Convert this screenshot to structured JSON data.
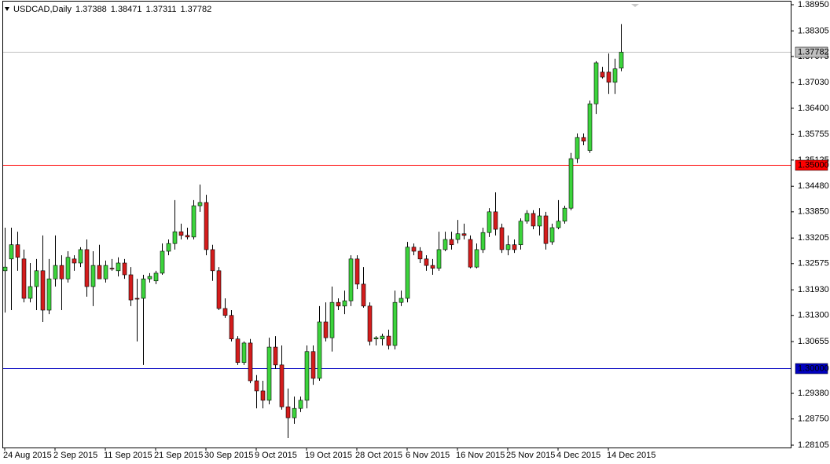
{
  "chart_data": {
    "type": "candlestick",
    "symbol": "USDCAD,Daily",
    "header_values": [
      1.37388,
      1.38471,
      1.37311,
      1.37782
    ],
    "categories": [
      "24 Aug 2015",
      null,
      null,
      null,
      null,
      null,
      null,
      null,
      "2 Sep 2015",
      null,
      null,
      null,
      null,
      null,
      null,
      null,
      "11 Sep 2015",
      null,
      null,
      null,
      null,
      null,
      null,
      null,
      "21 Sep 2015",
      null,
      null,
      null,
      null,
      null,
      null,
      null,
      "30 Sep 2015",
      null,
      null,
      null,
      null,
      null,
      null,
      null,
      "9 Oct 2015",
      null,
      null,
      null,
      null,
      null,
      null,
      null,
      "19 Oct 2015",
      null,
      null,
      null,
      null,
      null,
      null,
      null,
      "28 Oct 2015",
      null,
      null,
      null,
      null,
      null,
      null,
      null,
      "6 Nov 2015",
      null,
      null,
      null,
      null,
      null,
      null,
      null,
      "16 Nov 2015",
      null,
      null,
      null,
      null,
      null,
      null,
      null,
      "25 Nov 2015",
      null,
      null,
      null,
      null,
      null,
      null,
      null,
      "4 Dec 2015",
      null,
      null,
      null,
      null,
      null,
      null,
      null,
      "14 Dec 2015",
      null,
      null
    ],
    "open": [
      1.324,
      1.3269,
      1.3304,
      1.3269,
      1.3172,
      1.3201,
      1.324,
      1.3143,
      1.322,
      1.3253,
      1.322,
      1.3269,
      1.3259,
      1.3292,
      1.3201,
      1.3253,
      1.322,
      1.3246,
      1.324,
      1.3259,
      1.323,
      1.3172,
      1.3172,
      1.322,
      1.3215,
      1.3234,
      1.3288,
      1.3307,
      1.3336,
      1.3327,
      1.3323,
      1.34,
      1.3408,
      1.3292,
      1.324,
      1.3147,
      1.313,
      1.3072,
      1.3014,
      1.3062,
      1.2969,
      1.2944,
      1.2921,
      1.3052,
      1.3008,
      1.2905,
      1.2878,
      1.2901,
      1.2921,
      1.3041,
      1.2975,
      1.3114,
      1.3075,
      1.3162,
      1.3153,
      1.3166,
      1.3269,
      1.3207,
      1.3153,
      1.3072,
      1.3072,
      1.3079,
      1.3056,
      1.3162,
      1.3172,
      1.3298,
      1.3288,
      1.3269,
      1.3253,
      1.3246,
      1.3292,
      1.3317,
      1.3317,
      1.3331,
      1.3317,
      1.3249,
      1.3292,
      1.3334,
      1.3385,
      1.3346,
      1.3292,
      1.3304,
      1.3304,
      1.3362,
      1.3381,
      1.335,
      1.3375,
      1.3311,
      1.3346,
      1.3362,
      1.3394,
      1.3516,
      1.3568,
      1.3536,
      1.3651,
      1.3729,
      1.3729,
      1.3704,
      1.37388
    ],
    "high": [
      1.3346,
      1.3346,
      1.3336,
      1.3292,
      1.3259,
      1.3269,
      1.3327,
      1.3269,
      1.3327,
      1.3278,
      1.3288,
      1.3278,
      1.3298,
      1.3317,
      1.3288,
      1.3304,
      1.3265,
      1.3269,
      1.3273,
      1.3269,
      1.3249,
      1.322,
      1.323,
      1.3234,
      1.324,
      1.3307,
      1.3317,
      1.3414,
      1.3356,
      1.3346,
      1.3414,
      1.3452,
      1.3427,
      1.3304,
      1.3249,
      1.3172,
      1.3143,
      1.3079,
      1.3066,
      1.3072,
      1.2983,
      1.2969,
      1.3075,
      1.3079,
      1.3056,
      1.295,
      1.293,
      1.293,
      1.3056,
      1.3056,
      1.3153,
      1.3162,
      1.3201,
      1.3172,
      1.3191,
      1.3278,
      1.3278,
      1.3249,
      1.3162,
      1.3079,
      1.3085,
      1.3095,
      1.3191,
      1.3191,
      1.3311,
      1.3307,
      1.3298,
      1.3278,
      1.3269,
      1.3336,
      1.3336,
      1.3336,
      1.3365,
      1.3356,
      1.3327,
      1.3307,
      1.3346,
      1.3394,
      1.3433,
      1.3356,
      1.3327,
      1.3317,
      1.3369,
      1.3389,
      1.3389,
      1.3394,
      1.3385,
      1.3356,
      1.3414,
      1.34,
      1.353,
      1.3578,
      1.3578,
      1.3659,
      1.3756,
      1.3742,
      1.3775,
      1.3762,
      1.38471
    ],
    "low": [
      1.3137,
      1.3143,
      1.324,
      1.3162,
      1.3162,
      1.3143,
      1.3114,
      1.3133,
      1.3201,
      1.3143,
      1.3211,
      1.324,
      1.3249,
      1.3176,
      1.3153,
      1.322,
      1.3211,
      1.324,
      1.3226,
      1.322,
      1.3153,
      1.3066,
      1.3008,
      1.3211,
      1.3207,
      1.323,
      1.3278,
      1.3292,
      1.3317,
      1.3317,
      1.3317,
      1.3385,
      1.3278,
      1.3215,
      1.3143,
      1.3124,
      1.3066,
      1.3008,
      1.3008,
      1.2963,
      1.2901,
      1.2901,
      1.2911,
      1.2998,
      1.2898,
      1.2828,
      1.2863,
      1.2892,
      1.2901,
      1.2959,
      1.2969,
      1.3066,
      1.3041,
      1.3143,
      1.3133,
      1.3153,
      1.3195,
      1.3149,
      1.3056,
      1.3056,
      1.3056,
      1.3046,
      1.3046,
      1.3153,
      1.3162,
      1.3278,
      1.3259,
      1.324,
      1.323,
      1.324,
      1.3288,
      1.3292,
      1.3307,
      1.3317,
      1.3246,
      1.3246,
      1.3284,
      1.3323,
      1.3327,
      1.3284,
      1.3278,
      1.3284,
      1.3292,
      1.3356,
      1.3342,
      1.3327,
      1.3292,
      1.3304,
      1.3342,
      1.3356,
      1.3389,
      1.3505,
      1.3549,
      1.353,
      1.3626,
      1.3713,
      1.3675,
      1.3675,
      1.37311
    ],
    "close": [
      1.3249,
      1.3304,
      1.3273,
      1.3172,
      1.3201,
      1.324,
      1.3143,
      1.322,
      1.3253,
      1.322,
      1.3273,
      1.3259,
      1.3292,
      1.3201,
      1.3253,
      1.322,
      1.3253,
      1.3244,
      1.3259,
      1.323,
      1.3168,
      1.317,
      1.322,
      1.3226,
      1.3234,
      1.3288,
      1.3307,
      1.3336,
      1.3327,
      1.3323,
      1.34,
      1.3408,
      1.3292,
      1.324,
      1.3147,
      1.313,
      1.3072,
      1.3014,
      1.3062,
      1.2969,
      1.2944,
      1.2921,
      1.3052,
      1.3008,
      1.2905,
      1.2878,
      1.2901,
      1.2921,
      1.3041,
      1.2975,
      1.3114,
      1.3075,
      1.3162,
      1.3153,
      1.3166,
      1.3269,
      1.3207,
      1.3153,
      1.3066,
      1.3075,
      1.3079,
      1.3056,
      1.3162,
      1.3172,
      1.3298,
      1.3288,
      1.3269,
      1.3253,
      1.3246,
      1.3292,
      1.3317,
      1.3304,
      1.3331,
      1.3327,
      1.3249,
      1.3292,
      1.3334,
      1.3385,
      1.3342,
      1.3292,
      1.3304,
      1.3292,
      1.3362,
      1.3381,
      1.335,
      1.3375,
      1.3307,
      1.3346,
      1.3362,
      1.3394,
      1.3516,
      1.3568,
      1.3559,
      1.3651,
      1.3752,
      1.3717,
      1.3704,
      1.3737,
      1.37782
    ],
    "up_color": "#3cd43c",
    "down_color": "#d41c1c",
    "ylim": [
      1.28105,
      1.3895
    ],
    "yticks": [
      {
        "value": 1.3895,
        "label": "1.38950"
      },
      {
        "value": 1.38305,
        "label": "1.38305"
      },
      {
        "value": 1.37675,
        "label": "1.37675"
      },
      {
        "value": 1.3703,
        "label": "1.37030"
      },
      {
        "value": 1.364,
        "label": "1.36400"
      },
      {
        "value": 1.35755,
        "label": "1.35755"
      },
      {
        "value": 1.35125,
        "label": "1.35125"
      },
      {
        "value": 1.3448,
        "label": "1.34480"
      },
      {
        "value": 1.3385,
        "label": "1.33850"
      },
      {
        "value": 1.33205,
        "label": "1.33205"
      },
      {
        "value": 1.32575,
        "label": "1.32575"
      },
      {
        "value": 1.3193,
        "label": "1.31930"
      },
      {
        "value": 1.313,
        "label": "1.31300"
      },
      {
        "value": 1.30655,
        "label": "1.30655"
      },
      {
        "value": 1.2938,
        "label": "1.29380"
      },
      {
        "value": 1.2875,
        "label": "1.28750"
      },
      {
        "value": 1.28105,
        "label": "1.28105"
      }
    ],
    "levels": [
      {
        "value": 1.37782,
        "color": "#c0c0c0",
        "label_color": "#000000"
      },
      {
        "value": 1.35,
        "label": "1.35000",
        "color": "#ff0000",
        "label_color": "#ffffff"
      },
      {
        "value": 1.3,
        "label": "1.30000",
        "color": "#0000c0",
        "label_color": "#ffffff"
      }
    ]
  }
}
